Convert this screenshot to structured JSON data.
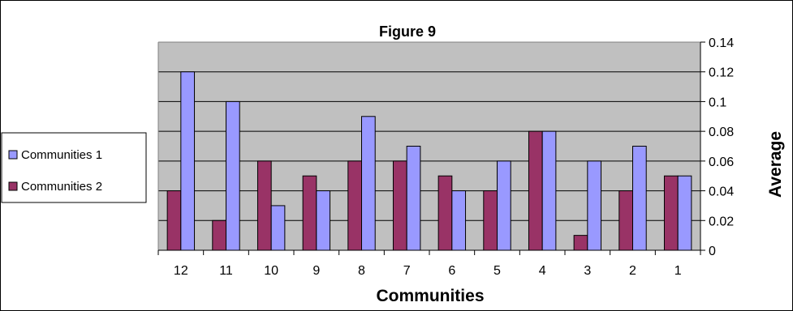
{
  "chart_data": {
    "type": "bar",
    "title": "Figure 9",
    "xlabel": "Communities",
    "ylabel": "Average",
    "categories": [
      "12",
      "11",
      "10",
      "9",
      "8",
      "7",
      "6",
      "5",
      "4",
      "3",
      "2",
      "1"
    ],
    "series": [
      {
        "name": "Communities 1",
        "color": "#9999FF",
        "values": [
          0.12,
          0.1,
          0.03,
          0.04,
          0.09,
          0.07,
          0.04,
          0.06,
          0.08,
          0.06,
          0.07,
          0.05
        ]
      },
      {
        "name": "Communities 2",
        "color": "#993366",
        "values": [
          0.04,
          0.02,
          0.06,
          0.05,
          0.06,
          0.06,
          0.05,
          0.04,
          0.08,
          0.01,
          0.04,
          0.05
        ]
      }
    ],
    "ylim": [
      0,
      0.14
    ],
    "yticks": [
      "0",
      "0.02",
      "0.04",
      "0.06",
      "0.08",
      "0.1",
      "0.12",
      "0.14"
    ],
    "y_axis_side": "right",
    "grid": true,
    "plot_background": "#C0C0C0",
    "legend": {
      "position": "left",
      "entries": [
        "Communities 1",
        "Communities 2"
      ]
    }
  }
}
